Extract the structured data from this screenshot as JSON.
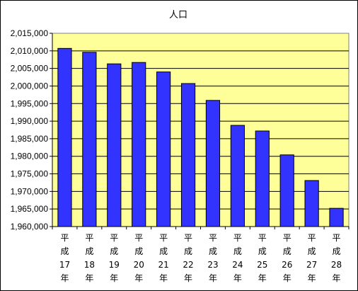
{
  "colors": {
    "plot_background": "#FFFF99",
    "bar_fill": "#3333FF",
    "bar_stroke": "#000000",
    "gridline": "#000000",
    "frame": "#000000"
  },
  "chart_data": {
    "type": "bar",
    "title": "人口",
    "xlabel": "",
    "ylabel": "",
    "categories": [
      "平成17年",
      "平成18年",
      "平成19年",
      "平成20年",
      "平成21年",
      "平成22年",
      "平成23年",
      "平成24年",
      "平成25年",
      "平成26年",
      "平成27年",
      "平成28年"
    ],
    "category_label_lines": [
      [
        "平",
        "成",
        "17",
        "年"
      ],
      [
        "平",
        "成",
        "18",
        "年"
      ],
      [
        "平",
        "成",
        "19",
        "年"
      ],
      [
        "平",
        "成",
        "20",
        "年"
      ],
      [
        "平",
        "成",
        "21",
        "年"
      ],
      [
        "平",
        "成",
        "22",
        "年"
      ],
      [
        "平",
        "成",
        "23",
        "年"
      ],
      [
        "平",
        "成",
        "24",
        "年"
      ],
      [
        "平",
        "成",
        "25",
        "年"
      ],
      [
        "平",
        "成",
        "26",
        "年"
      ],
      [
        "平",
        "成",
        "27",
        "年"
      ],
      [
        "平",
        "成",
        "28",
        "年"
      ]
    ],
    "values": [
      2010700,
      2009600,
      2006300,
      2006700,
      2004000,
      2000700,
      1995900,
      1988800,
      1987200,
      1980400,
      1973100,
      1965200
    ],
    "ylim": [
      1960000,
      2015000
    ],
    "yticks": [
      1960000,
      1965000,
      1970000,
      1975000,
      1980000,
      1985000,
      1990000,
      1995000,
      2000000,
      2005000,
      2010000,
      2015000
    ],
    "ytick_labels": [
      "1,960,000",
      "1,965,000",
      "1,970,000",
      "1,975,000",
      "1,980,000",
      "1,985,000",
      "1,990,000",
      "1,995,000",
      "2,000,000",
      "2,005,000",
      "2,010,000",
      "2,015,000"
    ],
    "grid": true,
    "legend": "none"
  }
}
